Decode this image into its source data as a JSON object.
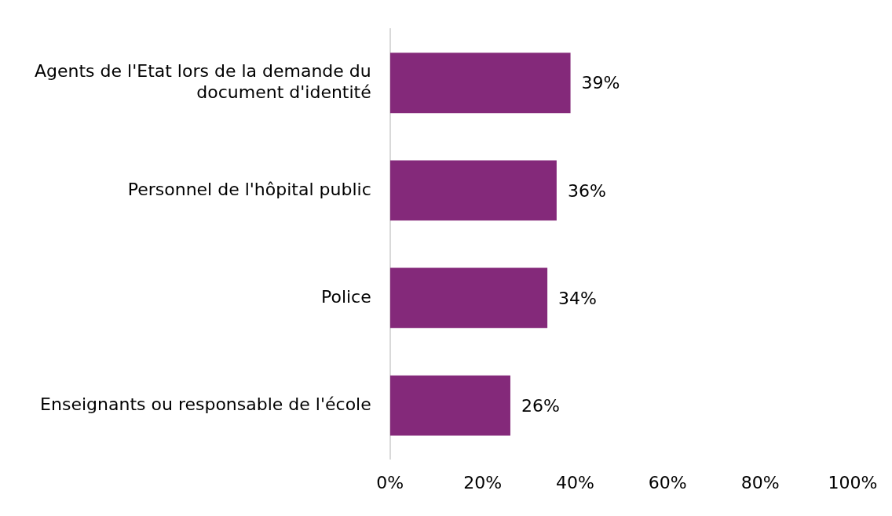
{
  "chart_data": {
    "type": "bar",
    "orientation": "horizontal",
    "categories": [
      "Agents de l'Etat lors de la demande du document d'identité",
      "Personnel de l'hôpital public",
      "Police",
      "Enseignants ou responsable de l'école"
    ],
    "values": [
      39,
      36,
      34,
      26
    ],
    "color": "#84297a",
    "value_labels": [
      "39%",
      "36%",
      "34%",
      "26%"
    ],
    "xlim": [
      0,
      100
    ],
    "xticks": [
      {
        "value": 0,
        "label": "0%"
      },
      {
        "value": 20,
        "label": "20%"
      },
      {
        "value": 40,
        "label": "40%"
      },
      {
        "value": 60,
        "label": "60%"
      },
      {
        "value": 80,
        "label": "80%"
      },
      {
        "value": 100,
        "label": "100%"
      }
    ],
    "grid": false,
    "legend": false
  }
}
